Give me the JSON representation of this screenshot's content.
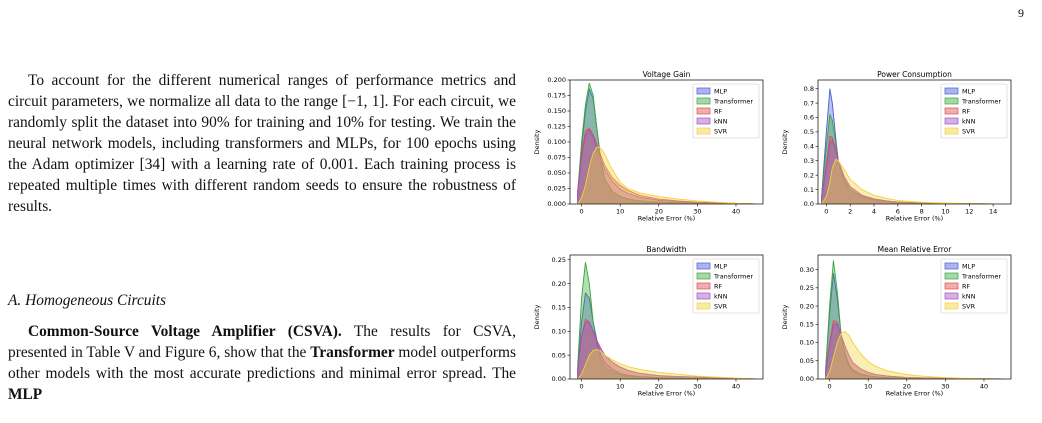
{
  "page_number": "9",
  "paragraph1": "To account for the different numerical ranges of performance metrics and circuit parameters, we normalize all data to the range [−1, 1]. For each circuit, we randomly split the dataset into 90% for training and 10% for testing. We train the neural network models, including transformers and MLPs, for 100 epochs using the Adam optimizer [34] with a learning rate of 0.001. Each training process is repeated multiple times with different random seeds to ensure the robustness of results.",
  "section_heading": "A. Homogeneous Circuits",
  "paragraph2": {
    "lead_bold": "Common-Source Voltage Amplifier (CSVA).",
    "t1": " The results for CSVA, presented in Table V and Figure 6, show that the ",
    "bold1": "Transformer",
    "t2": " model outperforms other models with the most accurate predictions and minimal error spread. The ",
    "bold2": "MLP"
  },
  "colors": {
    "MLP": "#4a5bd6",
    "Transformer": "#3aa63a",
    "RF": "#e14c4c",
    "kNN": "#a052c4",
    "SVR": "#f2d23a"
  },
  "chart_data": [
    {
      "type": "area",
      "title": "Voltage Gain",
      "xlabel": "Relative Error (%)",
      "ylabel": "Density",
      "xlim": [
        -3,
        47
      ],
      "ylim": [
        0,
        0.2
      ],
      "xticks": [
        0,
        10,
        20,
        30,
        40
      ],
      "yticks": [
        0,
        0.025,
        0.05,
        0.075,
        0.1,
        0.125,
        0.15,
        0.175,
        0.2
      ],
      "ytick_labels": [
        "0.000",
        "0.025",
        "0.050",
        "0.075",
        "0.100",
        "0.125",
        "0.150",
        "0.175",
        "0.200"
      ],
      "legend": [
        "MLP",
        "Transformer",
        "RF",
        "kNN",
        "SVR"
      ],
      "legend_position": "top-right",
      "series": [
        {
          "name": "MLP",
          "x": [
            -1,
            0,
            1,
            2,
            3,
            4,
            5,
            6,
            8,
            10,
            12,
            15,
            20,
            25,
            30,
            35,
            40,
            45
          ],
          "y": [
            0.02,
            0.09,
            0.15,
            0.185,
            0.17,
            0.12,
            0.07,
            0.04,
            0.02,
            0.012,
            0.008,
            0.005,
            0.003,
            0.002,
            0.001,
            0.0005,
            0.0003,
            0.0
          ]
        },
        {
          "name": "Transformer",
          "x": [
            -1,
            0,
            1,
            2,
            3,
            4,
            5,
            6,
            8,
            10,
            12,
            15,
            20,
            25,
            30,
            35,
            40,
            45
          ],
          "y": [
            0.02,
            0.1,
            0.16,
            0.195,
            0.175,
            0.12,
            0.07,
            0.04,
            0.02,
            0.012,
            0.008,
            0.005,
            0.003,
            0.002,
            0.001,
            0.0005,
            0.0003,
            0.0
          ]
        },
        {
          "name": "RF",
          "x": [
            -1,
            0,
            1,
            2,
            3,
            4,
            5,
            6,
            8,
            10,
            12,
            15,
            20,
            25,
            30,
            35,
            40,
            45
          ],
          "y": [
            0.02,
            0.08,
            0.118,
            0.122,
            0.112,
            0.095,
            0.078,
            0.062,
            0.042,
            0.03,
            0.022,
            0.014,
            0.008,
            0.005,
            0.003,
            0.002,
            0.001,
            0.0
          ]
        },
        {
          "name": "kNN",
          "x": [
            -1,
            0,
            1,
            2,
            3,
            4,
            5,
            6,
            8,
            10,
            12,
            15,
            20,
            25,
            30,
            35,
            40,
            45
          ],
          "y": [
            0.02,
            0.075,
            0.11,
            0.12,
            0.108,
            0.09,
            0.072,
            0.056,
            0.036,
            0.024,
            0.017,
            0.011,
            0.006,
            0.004,
            0.002,
            0.001,
            0.0005,
            0.0
          ]
        },
        {
          "name": "SVR",
          "x": [
            -1,
            0,
            1,
            2,
            3,
            4,
            5,
            6,
            8,
            10,
            12,
            15,
            20,
            25,
            30,
            35,
            40,
            45
          ],
          "y": [
            0.0,
            0.01,
            0.03,
            0.06,
            0.082,
            0.092,
            0.09,
            0.08,
            0.055,
            0.035,
            0.025,
            0.018,
            0.012,
            0.008,
            0.005,
            0.003,
            0.001,
            0.0
          ]
        }
      ]
    },
    {
      "type": "area",
      "title": "Power Consumption",
      "xlabel": "Relative Error (%)",
      "ylabel": "Density",
      "xlim": [
        -0.7,
        15.5
      ],
      "ylim": [
        0,
        0.86
      ],
      "xticks": [
        0,
        2,
        4,
        6,
        8,
        10,
        12,
        14
      ],
      "yticks": [
        0,
        0.1,
        0.2,
        0.3,
        0.4,
        0.5,
        0.6,
        0.7,
        0.8
      ],
      "ytick_labels": [
        "0.0",
        "0.1",
        "0.2",
        "0.3",
        "0.4",
        "0.5",
        "0.6",
        "0.7",
        "0.8"
      ],
      "legend": [
        "MLP",
        "Transformer",
        "RF",
        "kNN",
        "SVR"
      ],
      "legend_position": "top-right",
      "series": [
        {
          "name": "MLP",
          "x": [
            -0.4,
            0,
            0.3,
            0.5,
            0.8,
            1,
            1.5,
            2,
            3,
            4,
            5,
            6,
            8,
            10,
            12,
            14
          ],
          "y": [
            0.05,
            0.5,
            0.8,
            0.7,
            0.45,
            0.3,
            0.16,
            0.1,
            0.05,
            0.03,
            0.02,
            0.012,
            0.006,
            0.003,
            0.001,
            0.0
          ]
        },
        {
          "name": "Transformer",
          "x": [
            -0.4,
            0,
            0.3,
            0.5,
            0.8,
            1,
            1.5,
            2,
            3,
            4,
            5,
            6,
            8,
            10,
            12,
            14
          ],
          "y": [
            0.05,
            0.4,
            0.62,
            0.58,
            0.42,
            0.3,
            0.17,
            0.1,
            0.05,
            0.03,
            0.02,
            0.012,
            0.006,
            0.003,
            0.001,
            0.0
          ]
        },
        {
          "name": "RF",
          "x": [
            -0.4,
            0,
            0.3,
            0.5,
            0.8,
            1,
            1.5,
            2,
            3,
            4,
            5,
            6,
            8,
            10,
            12,
            14
          ],
          "y": [
            0.04,
            0.28,
            0.47,
            0.46,
            0.38,
            0.3,
            0.19,
            0.12,
            0.06,
            0.035,
            0.022,
            0.013,
            0.006,
            0.003,
            0.001,
            0.0
          ]
        },
        {
          "name": "kNN",
          "x": [
            -0.4,
            0,
            0.3,
            0.5,
            0.8,
            1,
            1.5,
            2,
            3,
            4,
            5,
            6,
            8,
            10,
            12,
            14
          ],
          "y": [
            0.04,
            0.25,
            0.42,
            0.44,
            0.37,
            0.3,
            0.19,
            0.12,
            0.06,
            0.035,
            0.022,
            0.013,
            0.006,
            0.003,
            0.001,
            0.0
          ]
        },
        {
          "name": "SVR",
          "x": [
            -0.4,
            0,
            0.3,
            0.5,
            0.8,
            1,
            1.5,
            2,
            3,
            4,
            5,
            6,
            8,
            10,
            12,
            14
          ],
          "y": [
            0.0,
            0.05,
            0.15,
            0.25,
            0.31,
            0.3,
            0.24,
            0.17,
            0.1,
            0.06,
            0.04,
            0.025,
            0.012,
            0.006,
            0.002,
            0.0
          ]
        }
      ]
    },
    {
      "type": "area",
      "title": "Bandwidth",
      "xlabel": "Relative Error (%)",
      "ylabel": "Density",
      "xlim": [
        -3,
        47
      ],
      "ylim": [
        0,
        0.26
      ],
      "xticks": [
        0,
        10,
        20,
        30,
        40
      ],
      "yticks": [
        0,
        0.05,
        0.1,
        0.15,
        0.2,
        0.25
      ],
      "ytick_labels": [
        "0.00",
        "0.05",
        "0.10",
        "0.15",
        "0.20",
        "0.25"
      ],
      "legend": [
        "MLP",
        "Transformer",
        "RF",
        "kNN",
        "SVR"
      ],
      "legend_position": "top-right",
      "series": [
        {
          "name": "MLP",
          "x": [
            -1,
            0,
            1,
            2,
            3,
            4,
            5,
            6,
            8,
            10,
            12,
            15,
            20,
            25,
            30,
            35,
            40,
            45
          ],
          "y": [
            0.02,
            0.12,
            0.18,
            0.17,
            0.12,
            0.08,
            0.05,
            0.035,
            0.02,
            0.012,
            0.008,
            0.005,
            0.003,
            0.002,
            0.001,
            0.0005,
            0.0003,
            0.0
          ]
        },
        {
          "name": "Transformer",
          "x": [
            -1,
            0,
            1,
            2,
            3,
            4,
            5,
            6,
            8,
            10,
            12,
            15,
            20,
            25,
            30,
            35,
            40,
            45
          ],
          "y": [
            0.03,
            0.17,
            0.245,
            0.2,
            0.12,
            0.07,
            0.04,
            0.025,
            0.014,
            0.009,
            0.006,
            0.004,
            0.002,
            0.001,
            0.0008,
            0.0004,
            0.0002,
            0.0
          ]
        },
        {
          "name": "RF",
          "x": [
            -1,
            0,
            1,
            2,
            3,
            4,
            5,
            6,
            8,
            10,
            12,
            15,
            20,
            25,
            30,
            35,
            40,
            45
          ],
          "y": [
            0.02,
            0.09,
            0.125,
            0.12,
            0.1,
            0.08,
            0.063,
            0.05,
            0.035,
            0.025,
            0.018,
            0.012,
            0.007,
            0.005,
            0.004,
            0.002,
            0.001,
            0.0
          ]
        },
        {
          "name": "kNN",
          "x": [
            -1,
            0,
            1,
            2,
            3,
            4,
            5,
            6,
            8,
            10,
            12,
            15,
            20,
            25,
            30,
            35,
            40,
            45
          ],
          "y": [
            0.02,
            0.09,
            0.12,
            0.118,
            0.1,
            0.08,
            0.064,
            0.05,
            0.035,
            0.025,
            0.018,
            0.012,
            0.007,
            0.005,
            0.004,
            0.002,
            0.001,
            0.0
          ]
        },
        {
          "name": "SVR",
          "x": [
            -1,
            0,
            1,
            2,
            3,
            4,
            5,
            6,
            8,
            10,
            12,
            15,
            20,
            25,
            30,
            35,
            40,
            45
          ],
          "y": [
            0.0,
            0.01,
            0.03,
            0.05,
            0.06,
            0.062,
            0.058,
            0.05,
            0.04,
            0.032,
            0.026,
            0.02,
            0.014,
            0.01,
            0.006,
            0.004,
            0.002,
            0.0
          ]
        }
      ]
    },
    {
      "type": "area",
      "title": "Mean Relative Error",
      "xlabel": "Relative Error (%)",
      "ylabel": "Density",
      "xlim": [
        -3,
        47
      ],
      "ylim": [
        0,
        0.34
      ],
      "xticks": [
        0,
        10,
        20,
        30,
        40
      ],
      "yticks": [
        0,
        0.05,
        0.1,
        0.15,
        0.2,
        0.25,
        0.3
      ],
      "ytick_labels": [
        "0.00",
        "0.05",
        "0.10",
        "0.15",
        "0.20",
        "0.25",
        "0.30"
      ],
      "legend": [
        "MLP",
        "Transformer",
        "RF",
        "kNN",
        "SVR"
      ],
      "legend_position": "top-right",
      "series": [
        {
          "name": "MLP",
          "x": [
            -1,
            0,
            1,
            2,
            3,
            4,
            5,
            6,
            8,
            10,
            12,
            15,
            20,
            25,
            30,
            35,
            40,
            45
          ],
          "y": [
            0.03,
            0.18,
            0.29,
            0.22,
            0.12,
            0.07,
            0.04,
            0.025,
            0.014,
            0.009,
            0.006,
            0.004,
            0.002,
            0.001,
            0.0008,
            0.0004,
            0.0002,
            0.0
          ]
        },
        {
          "name": "Transformer",
          "x": [
            -1,
            0,
            1,
            2,
            3,
            4,
            5,
            6,
            8,
            10,
            12,
            15,
            20,
            25,
            30,
            35,
            40,
            45
          ],
          "y": [
            0.03,
            0.2,
            0.325,
            0.24,
            0.12,
            0.065,
            0.035,
            0.022,
            0.012,
            0.008,
            0.005,
            0.003,
            0.002,
            0.001,
            0.0008,
            0.0004,
            0.0002,
            0.0
          ]
        },
        {
          "name": "RF",
          "x": [
            -1,
            0,
            1,
            2,
            3,
            4,
            5,
            6,
            8,
            10,
            12,
            15,
            20,
            25,
            30,
            35,
            40,
            45
          ],
          "y": [
            0.02,
            0.1,
            0.16,
            0.155,
            0.12,
            0.09,
            0.065,
            0.045,
            0.028,
            0.018,
            0.012,
            0.008,
            0.004,
            0.003,
            0.002,
            0.001,
            0.0005,
            0.0
          ]
        },
        {
          "name": "kNN",
          "x": [
            -1,
            0,
            1,
            2,
            3,
            4,
            5,
            6,
            8,
            10,
            12,
            15,
            20,
            25,
            30,
            35,
            40,
            45
          ],
          "y": [
            0.02,
            0.09,
            0.15,
            0.15,
            0.12,
            0.09,
            0.065,
            0.045,
            0.028,
            0.018,
            0.012,
            0.008,
            0.004,
            0.003,
            0.002,
            0.001,
            0.0005,
            0.0
          ]
        },
        {
          "name": "SVR",
          "x": [
            -1,
            0,
            1,
            2,
            3,
            4,
            5,
            6,
            8,
            10,
            12,
            15,
            20,
            25,
            30,
            35,
            40,
            45
          ],
          "y": [
            0.0,
            0.02,
            0.06,
            0.1,
            0.125,
            0.13,
            0.12,
            0.1,
            0.07,
            0.048,
            0.034,
            0.022,
            0.012,
            0.007,
            0.004,
            0.002,
            0.001,
            0.0
          ]
        }
      ]
    }
  ]
}
